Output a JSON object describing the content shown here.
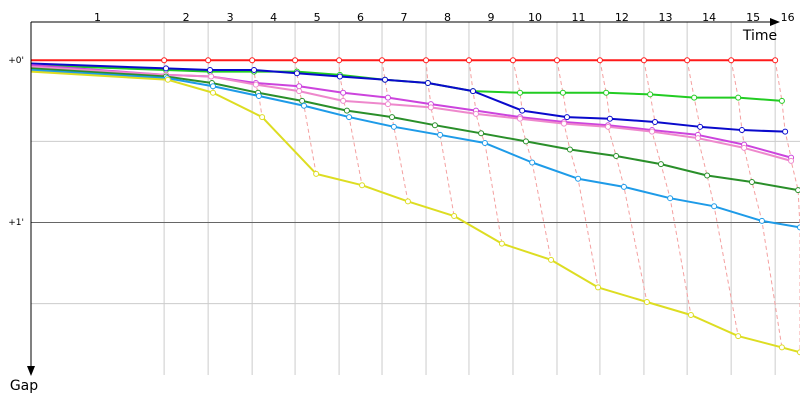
{
  "chart_data": {
    "type": "line",
    "x_label": "Time",
    "y_label": "Gap",
    "xlim": [
      0,
      284.8
    ],
    "ylim": [
      -0.23,
      1.94
    ],
    "lap_ends": [
      49.3,
      65.6,
      81.9,
      97.8,
      114.1,
      130.0,
      146.3,
      162.2,
      178.5,
      194.8,
      210.7,
      227.0,
      243.0,
      259.3,
      275.6
    ],
    "lap_labels": [
      "1",
      "2",
      "3",
      "4",
      "5",
      "6",
      "7",
      "8",
      "9",
      "10",
      "11",
      "12",
      "13",
      "14",
      "15",
      "16"
    ],
    "yticks": [
      {
        "value": 0,
        "label": "+0'"
      },
      {
        "value": 1,
        "label": "+1'"
      }
    ],
    "minor_yticks": [
      0.5,
      1.5
    ],
    "grid": true,
    "series": [
      {
        "color": "#ff1a1a",
        "x": [
          0,
          49.3,
          65.6,
          81.9,
          97.8,
          114.1,
          130.0,
          146.3,
          162.2,
          178.5,
          194.8,
          210.7,
          227.0,
          243.0,
          259.3,
          275.6
        ],
        "values": [
          0,
          0,
          0,
          0,
          0,
          0,
          0,
          0,
          0,
          0,
          0,
          0,
          0,
          0,
          0,
          0
        ]
      },
      {
        "color": "#22cc22",
        "x": [
          0,
          50.0,
          66.3,
          82.6,
          98.5,
          114.4,
          131.1,
          147.0,
          163.7,
          181.1,
          197.0,
          213.0,
          229.3,
          245.6,
          261.9,
          278.1
        ],
        "values": [
          0.03,
          0.06,
          0.07,
          0.07,
          0.07,
          0.09,
          0.12,
          0.14,
          0.19,
          0.2,
          0.2,
          0.2,
          0.21,
          0.23,
          0.23,
          0.25
        ]
      },
      {
        "color": "#0a0acc",
        "x": [
          0,
          50.0,
          66.3,
          82.6,
          98.5,
          114.4,
          131.1,
          147.0,
          163.7,
          181.9,
          198.5,
          214.4,
          231.1,
          247.8,
          263.3,
          279.3
        ],
        "values": [
          0.02,
          0.05,
          0.06,
          0.06,
          0.08,
          0.1,
          0.12,
          0.14,
          0.19,
          0.31,
          0.35,
          0.36,
          0.38,
          0.41,
          0.43,
          0.44
        ]
      },
      {
        "color": "#cc44dd",
        "x": [
          0,
          50.0,
          66.7,
          83.3,
          99.3,
          115.6,
          132.2,
          148.1,
          164.8,
          181.1,
          197.4,
          213.7,
          230.0,
          247.0,
          264.1,
          281.5
        ],
        "values": [
          0.03,
          0.09,
          0.1,
          0.14,
          0.16,
          0.2,
          0.23,
          0.27,
          0.31,
          0.35,
          0.38,
          0.4,
          0.43,
          0.46,
          0.52,
          0.6
        ]
      },
      {
        "color": "#ee88cc",
        "x": [
          0,
          50.0,
          66.7,
          83.3,
          99.3,
          115.6,
          132.2,
          148.1,
          164.8,
          181.1,
          197.4,
          213.7,
          230.0,
          247.0,
          264.1,
          281.5
        ],
        "values": [
          0.04,
          0.09,
          0.1,
          0.15,
          0.19,
          0.25,
          0.27,
          0.29,
          0.33,
          0.36,
          0.39,
          0.41,
          0.44,
          0.48,
          0.54,
          0.62
        ]
      },
      {
        "color": "#2a8f2a",
        "x": [
          0,
          50.0,
          67.0,
          84.1,
          100.4,
          117.0,
          133.7,
          149.6,
          166.7,
          183.3,
          199.6,
          216.7,
          233.3,
          250.4,
          267.0,
          284.1
        ],
        "values": [
          0.05,
          0.1,
          0.14,
          0.2,
          0.25,
          0.31,
          0.35,
          0.4,
          0.45,
          0.5,
          0.55,
          0.59,
          0.64,
          0.71,
          0.75,
          0.8
        ]
      },
      {
        "color": "#1e9be8",
        "x": [
          0,
          50.4,
          67.4,
          84.4,
          101.1,
          117.8,
          134.4,
          151.5,
          168.1,
          185.6,
          202.6,
          219.6,
          236.7,
          253.0,
          270.7,
          284.8
        ],
        "values": [
          0.06,
          0.11,
          0.16,
          0.22,
          0.28,
          0.35,
          0.41,
          0.46,
          0.51,
          0.63,
          0.73,
          0.78,
          0.85,
          0.9,
          0.99,
          1.03
        ]
      },
      {
        "color": "#dddd22",
        "x": [
          0,
          50.7,
          67.4,
          85.6,
          105.6,
          122.6,
          139.6,
          156.7,
          174.4,
          192.6,
          210.0,
          228.1,
          244.4,
          261.9,
          278.1,
          284.8
        ],
        "values": [
          0.07,
          0.12,
          0.2,
          0.35,
          0.7,
          0.77,
          0.87,
          0.96,
          1.13,
          1.23,
          1.4,
          1.49,
          1.57,
          1.7,
          1.77,
          1.8
        ]
      }
    ]
  }
}
